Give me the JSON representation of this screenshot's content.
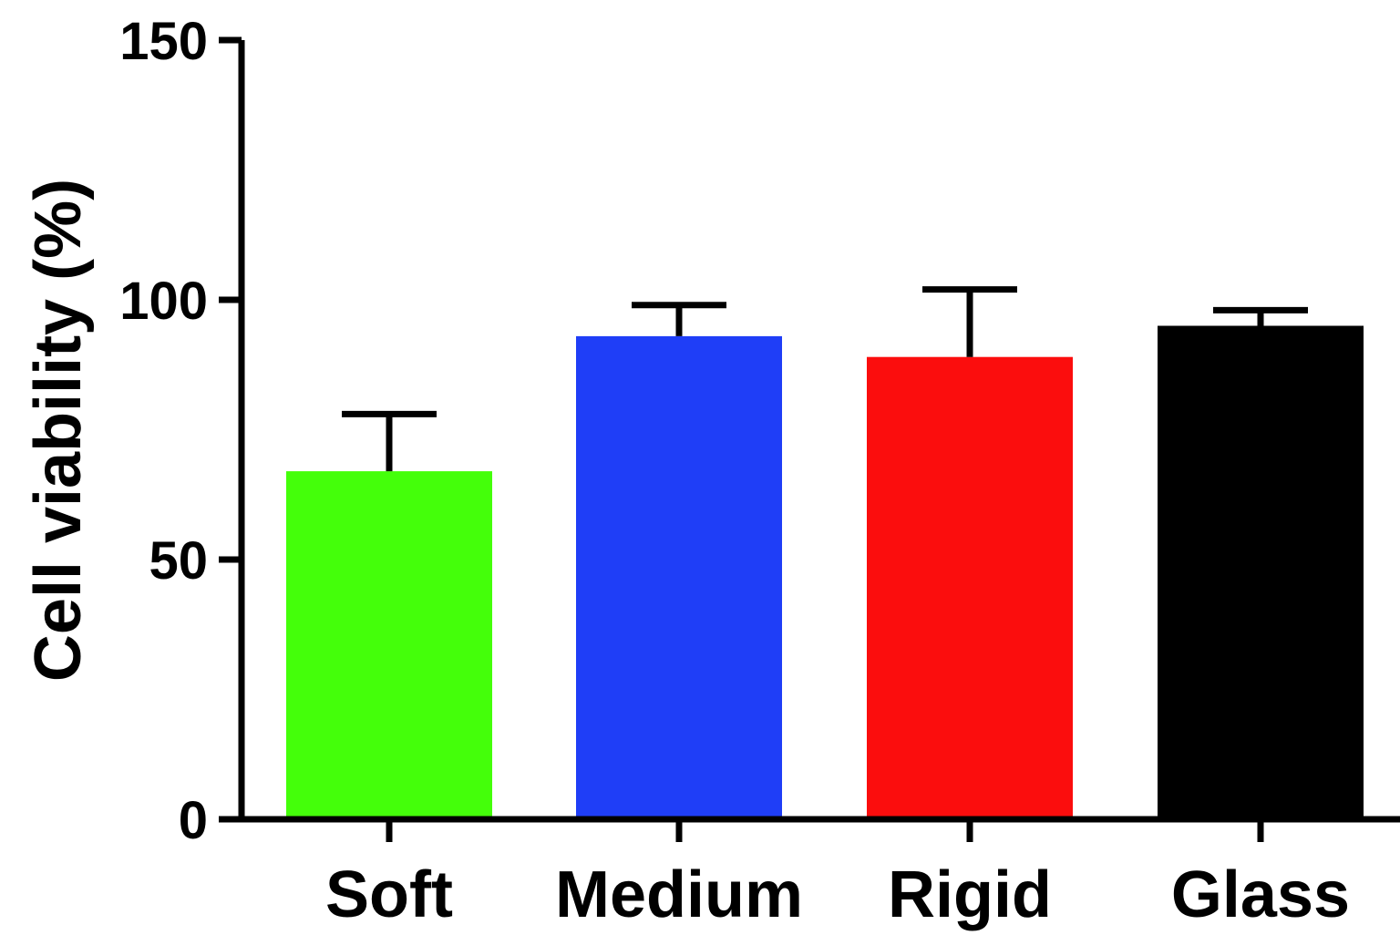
{
  "chart_data": {
    "type": "bar",
    "title": "",
    "xlabel": "",
    "ylabel": "Cell viability (%)",
    "categories": [
      "Soft",
      "Medium",
      "Rigid",
      "Glass"
    ],
    "values": [
      67,
      93,
      89,
      95
    ],
    "error_upper": [
      78,
      99,
      102,
      98
    ],
    "colors": [
      "#44ff0a",
      "#1f3ef7",
      "#fb0d0d",
      "#000000"
    ],
    "ylim": [
      0,
      150
    ],
    "yticks": [
      0,
      50,
      100,
      150
    ],
    "ytick_labels": [
      "0",
      "50",
      "100",
      "150"
    ],
    "grid": false,
    "legend": "none"
  }
}
